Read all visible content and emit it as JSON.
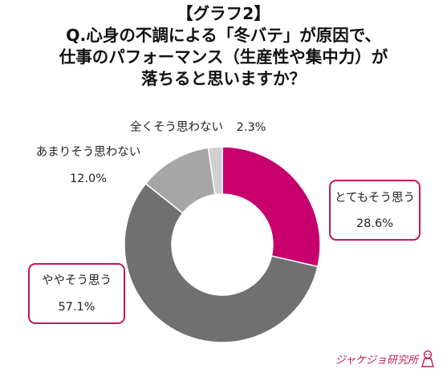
{
  "title": {
    "line1": "【グラフ2】",
    "line2": "Q.心身の不調による「冬バテ」が原因で、",
    "line3": "仕事のパフォーマンス（生産性や集中力）が",
    "line4": "落ちると思いますか？"
  },
  "chart_data": {
    "type": "pie",
    "donut": true,
    "slices": [
      {
        "label": "とてもそう思う",
        "value": 28.6,
        "value_text": "28.6%",
        "color": "#c8006e"
      },
      {
        "label": "ややそう思う",
        "value": 57.1,
        "value_text": "57.1%",
        "color": "#707070"
      },
      {
        "label": "あまりそう思わない",
        "value": 12.0,
        "value_text": "12.0%",
        "color": "#a6a6a6"
      },
      {
        "label": "全くそう思わない",
        "value": 2.3,
        "value_text": "2.3%",
        "color": "#d0d0d0"
      }
    ],
    "start": "top",
    "direction": "clockwise"
  },
  "logo": {
    "text": "ジャケジョ研究所",
    "color": "#c2185b"
  }
}
